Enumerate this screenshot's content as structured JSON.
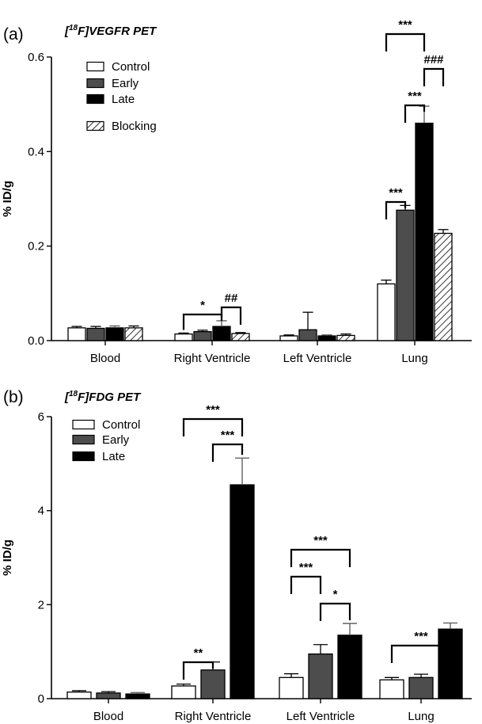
{
  "colors": {
    "control": "#ffffff",
    "early": "#4d4d4d",
    "late": "#000000",
    "blocking": "hatched"
  },
  "chart_data": [
    {
      "type": "bar",
      "panel_letter": "(a)",
      "title_prefix": "[",
      "title_sup": "18",
      "title_suffix": "F]VEGFR PET",
      "xlabel": "",
      "ylabel": "% ID/g",
      "ylim": [
        0,
        0.6
      ],
      "yticks": [
        0.0,
        0.2,
        0.4,
        0.6
      ],
      "ytick_labels": [
        "0.0",
        "0.2",
        "0.4",
        "0.6"
      ],
      "categories": [
        "Blood",
        "Right Ventricle",
        "Left Ventricle",
        "Lung"
      ],
      "series": [
        {
          "name": "Control",
          "values": [
            0.027,
            0.014,
            0.01,
            0.12
          ],
          "errors": [
            0.003,
            0.002,
            0.002,
            0.008
          ]
        },
        {
          "name": "Early",
          "values": [
            0.026,
            0.019,
            0.023,
            0.276
          ],
          "errors": [
            0.004,
            0.003,
            0.037,
            0.01
          ]
        },
        {
          "name": "Late",
          "values": [
            0.027,
            0.03,
            0.01,
            0.46
          ],
          "errors": [
            0.004,
            0.012,
            0.002,
            0.036
          ]
        },
        {
          "name": "Blocking",
          "values": [
            0.027,
            0.015,
            0.011,
            0.227
          ],
          "errors": [
            0.004,
            0.002,
            0.003,
            0.008
          ]
        }
      ],
      "significance": [
        {
          "label": "*",
          "category": 1,
          "from": 0,
          "to": 2
        },
        {
          "label": "##",
          "category": 1,
          "from": 2,
          "to": 3
        },
        {
          "label": "***",
          "category": 3,
          "from": 0,
          "to": 1
        },
        {
          "label": "***",
          "category": 3,
          "from": 1,
          "to": 2
        },
        {
          "label": "***",
          "category": 3,
          "from": 0,
          "to": 2
        },
        {
          "label": "###",
          "category": 3,
          "from": 2,
          "to": 3
        }
      ],
      "legend_position": "top-left"
    },
    {
      "type": "bar",
      "panel_letter": "(b)",
      "title_prefix": "[",
      "title_sup": "18",
      "title_suffix": "F]FDG PET",
      "xlabel": "",
      "ylabel": "% ID/g",
      "ylim": [
        0,
        6
      ],
      "yticks": [
        0,
        2,
        4,
        6
      ],
      "ytick_labels": [
        "0",
        "2",
        "4",
        "6"
      ],
      "categories": [
        "Blood",
        "Right Ventricle",
        "Left Ventricle",
        "Lung"
      ],
      "series": [
        {
          "name": "Control",
          "values": [
            0.14,
            0.27,
            0.45,
            0.4
          ],
          "errors": [
            0.03,
            0.04,
            0.08,
            0.05
          ]
        },
        {
          "name": "Early",
          "values": [
            0.12,
            0.61,
            0.95,
            0.45
          ],
          "errors": [
            0.03,
            0.17,
            0.2,
            0.07
          ]
        },
        {
          "name": "Late",
          "values": [
            0.1,
            4.55,
            1.35,
            1.48
          ],
          "errors": [
            0.03,
            0.57,
            0.25,
            0.13
          ]
        }
      ],
      "significance": [
        {
          "label": "**",
          "category": 1,
          "from": 0,
          "to": 1
        },
        {
          "label": "***",
          "category": 1,
          "from": 1,
          "to": 2
        },
        {
          "label": "***",
          "category": 1,
          "from": 0,
          "to": 2
        },
        {
          "label": "***",
          "category": 2,
          "from": 0,
          "to": 1
        },
        {
          "label": "*",
          "category": 2,
          "from": 1,
          "to": 2
        },
        {
          "label": "***",
          "category": 2,
          "from": 0,
          "to": 2
        },
        {
          "label": "***",
          "category": 3,
          "from": 0,
          "to": 2
        }
      ],
      "legend_position": "top-left"
    }
  ]
}
